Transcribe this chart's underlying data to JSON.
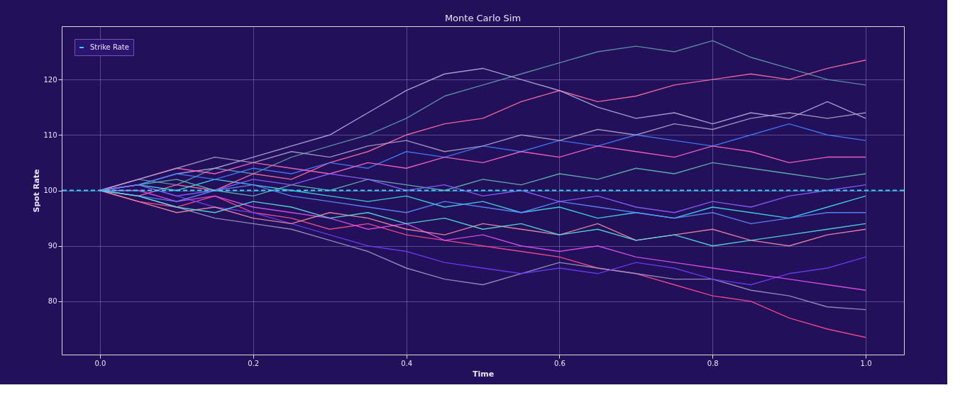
{
  "chart_data": {
    "type": "line",
    "title": "Monte Carlo Sim",
    "xlabel": "Time",
    "ylabel": "Spot Rate",
    "x": [
      0,
      0.05,
      0.1,
      0.15,
      0.2,
      0.25,
      0.3,
      0.35,
      0.4,
      0.45,
      0.5,
      0.55,
      0.6,
      0.65,
      0.7,
      0.75,
      0.8,
      0.85,
      0.9,
      0.95,
      1.0
    ],
    "xlim": [
      -0.05,
      1.05
    ],
    "ylim": [
      70.4,
      129.6
    ],
    "xticks": [
      {
        "value": 0,
        "label": "0.0"
      },
      0.2,
      0.4,
      0.6,
      0.8,
      {
        "value": 1.0,
        "label": "1.0"
      }
    ],
    "yticks": [
      80,
      90,
      100,
      110,
      120
    ],
    "grid": true,
    "legend": "top left",
    "ref_lines": [
      {
        "axis": "y",
        "value": 100,
        "label": "Strike Rate",
        "color": "#2ad4f0",
        "line_style": "dashed"
      }
    ],
    "series": [
      {
        "color": "#5b9aa8",
        "values": [
          100,
          102,
          101,
          104,
          103,
          106,
          108,
          110,
          113,
          117,
          119,
          121,
          123,
          125,
          126,
          125,
          127,
          124,
          122,
          120,
          119
        ]
      },
      {
        "color": "#ff6fa0",
        "values": [
          100,
          99,
          101,
          100,
          103,
          102,
          105,
          107,
          110,
          112,
          113,
          116,
          118,
          116,
          117,
          119,
          120,
          121,
          120,
          122,
          123.5
        ]
      },
      {
        "color": "#b0a8e0",
        "values": [
          100,
          101,
          103,
          104,
          106,
          108,
          110,
          114,
          118,
          121,
          122,
          120,
          118,
          115,
          113,
          114,
          112,
          114,
          113,
          116,
          113
        ]
      },
      {
        "color": "#ff4d8a",
        "values": [
          100,
          98,
          97,
          99,
          96,
          95,
          93,
          94,
          92,
          91,
          90,
          89,
          88,
          86,
          85,
          83,
          81,
          80,
          77,
          75,
          73.5
        ]
      },
      {
        "color": "#9a93c0",
        "values": [
          100,
          99,
          97,
          95,
          94,
          93,
          91,
          89,
          86,
          84,
          83,
          85,
          87,
          86,
          85,
          84,
          84,
          82,
          81,
          79,
          78.5
        ]
      },
      {
        "color": "#6a3df5",
        "values": [
          100,
          101,
          99,
          97,
          96,
          94,
          92,
          90,
          89,
          87,
          86,
          85,
          86,
          85,
          87,
          86,
          84,
          83,
          85,
          86,
          88
        ]
      },
      {
        "color": "#e050f0",
        "values": [
          100,
          100,
          98,
          99,
          97,
          96,
          95,
          93,
          94,
          91,
          92,
          90,
          89,
          90,
          88,
          87,
          86,
          85,
          84,
          83,
          82
        ]
      },
      {
        "color": "#40dcf0",
        "values": [
          100,
          101,
          100,
          102,
          101,
          100,
          99,
          98,
          99,
          97,
          98,
          96,
          97,
          95,
          96,
          95,
          97,
          96,
          95,
          97,
          99
        ]
      },
      {
        "color": "#3f7dff",
        "values": [
          100,
          101,
          103,
          102,
          104,
          103,
          105,
          104,
          107,
          106,
          108,
          107,
          109,
          108,
          110,
          109,
          108,
          110,
          112,
          110,
          109
        ]
      },
      {
        "color": "#f28ca0",
        "values": [
          100,
          98,
          96,
          97,
          95,
          94,
          96,
          95,
          93,
          92,
          94,
          93,
          92,
          94,
          91,
          92,
          93,
          91,
          90,
          92,
          93
        ]
      },
      {
        "color": "#5a8cff",
        "values": [
          100,
          99,
          98,
          100,
          101,
          99,
          98,
          97,
          96,
          98,
          97,
          96,
          98,
          97,
          96,
          95,
          96,
          94,
          95,
          96,
          96
        ]
      },
      {
        "color": "#ff66c4",
        "values": [
          100,
          102,
          104,
          103,
          105,
          104,
          103,
          105,
          104,
          106,
          105,
          107,
          106,
          108,
          107,
          106,
          108,
          107,
          105,
          106,
          106
        ]
      },
      {
        "color": "#60b8b0",
        "values": [
          100,
          101,
          102,
          100,
          99,
          101,
          100,
          102,
          101,
          100,
          102,
          101,
          103,
          102,
          104,
          103,
          105,
          104,
          103,
          102,
          103
        ]
      },
      {
        "color": "#a8a0c8",
        "values": [
          100,
          102,
          104,
          106,
          105,
          107,
          106,
          108,
          109,
          107,
          108,
          110,
          109,
          111,
          110,
          112,
          111,
          113,
          114,
          113,
          114
        ]
      },
      {
        "color": "#55e0e0",
        "values": [
          100,
          99,
          97,
          96,
          98,
          97,
          95,
          96,
          94,
          95,
          93,
          94,
          92,
          93,
          91,
          92,
          90,
          91,
          92,
          93,
          94
        ]
      },
      {
        "color": "#8a60ff",
        "values": [
          100,
          101,
          99,
          100,
          102,
          101,
          103,
          102,
          100,
          101,
          99,
          100,
          98,
          99,
          97,
          96,
          98,
          97,
          99,
          100,
          101
        ]
      }
    ]
  }
}
